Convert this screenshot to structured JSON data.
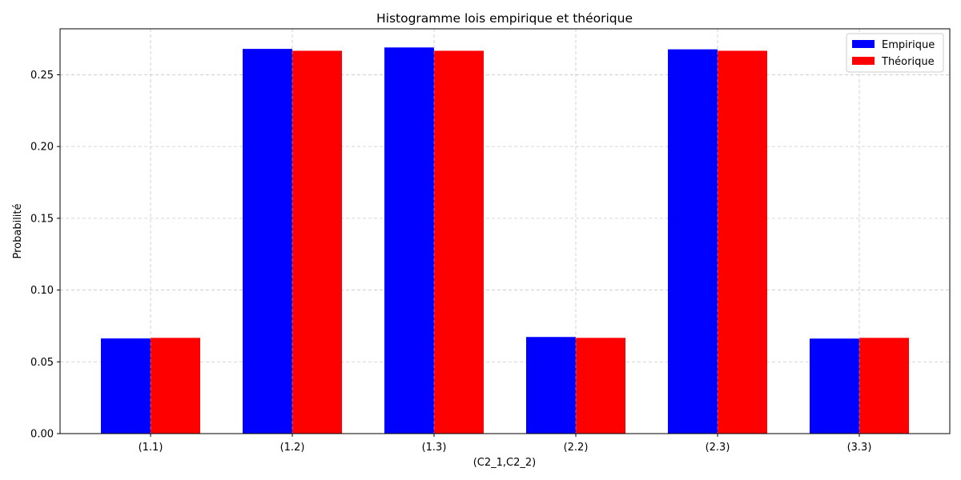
{
  "chart_data": {
    "type": "bar",
    "title": "Histogramme lois empirique et théorique",
    "xlabel": "(C2_1,C2_2)",
    "ylabel": "Probabilité",
    "categories": [
      "(1.1)",
      "(1.2)",
      "(1.3)",
      "(2.2)",
      "(2.3)",
      "(3.3)"
    ],
    "series": [
      {
        "name": "Empirique",
        "color": "#0000ff",
        "values": [
          0.0663,
          0.268,
          0.269,
          0.0673,
          0.2677,
          0.0662
        ]
      },
      {
        "name": "Théorique",
        "color": "#ff0000",
        "values": [
          0.0667,
          0.2667,
          0.2667,
          0.0667,
          0.2667,
          0.0667
        ]
      }
    ],
    "ylim": [
      0,
      0.282
    ],
    "yticks": [
      0.0,
      0.05,
      0.1,
      0.15,
      0.2,
      0.25
    ],
    "ytick_labels": [
      "0.00",
      "0.05",
      "0.10",
      "0.15",
      "0.20",
      "0.25"
    ],
    "grid": true,
    "legend_position": "top-right"
  }
}
